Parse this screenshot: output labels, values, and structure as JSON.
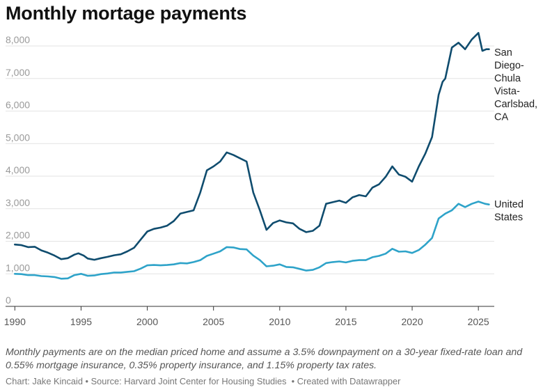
{
  "title": "Monthly mortage payments",
  "chart_data": {
    "type": "line",
    "title": "Monthly mortage payments",
    "xlabel": "",
    "ylabel": "",
    "xlim": [
      1989.3,
      2026.2
    ],
    "ylim": [
      0,
      8000
    ],
    "grid": true,
    "legend": "direct labels at line ends (right)",
    "x_ticks": [
      1990,
      1995,
      2000,
      2005,
      2010,
      2015,
      2020,
      2025
    ],
    "y_ticks": [
      0,
      1000,
      2000,
      3000,
      4000,
      5000,
      6000,
      7000,
      8000
    ],
    "y_tick_labels": [
      "0",
      "1,000",
      "2,000",
      "3,000",
      "4,000",
      "5,000",
      "6,000",
      "7,000",
      "8,000"
    ],
    "series": [
      {
        "name": "San Diego-Chula Vista-Carlsbad, CA",
        "label_lines": [
          "San",
          "Diego-",
          "Chula",
          "Vista-",
          "Carlsbad,",
          "CA"
        ],
        "color": "#0f4c6e",
        "points": [
          [
            1990.0,
            1900
          ],
          [
            1990.5,
            1880
          ],
          [
            1991.0,
            1820
          ],
          [
            1991.5,
            1830
          ],
          [
            1992.0,
            1720
          ],
          [
            1992.5,
            1650
          ],
          [
            1993.0,
            1560
          ],
          [
            1993.5,
            1450
          ],
          [
            1994.0,
            1480
          ],
          [
            1994.5,
            1590
          ],
          [
            1994.8,
            1630
          ],
          [
            1995.2,
            1560
          ],
          [
            1995.5,
            1470
          ],
          [
            1996.0,
            1430
          ],
          [
            1996.5,
            1480
          ],
          [
            1997.0,
            1520
          ],
          [
            1997.5,
            1570
          ],
          [
            1998.0,
            1600
          ],
          [
            1998.5,
            1690
          ],
          [
            1999.0,
            1800
          ],
          [
            1999.5,
            2050
          ],
          [
            2000.0,
            2300
          ],
          [
            2000.5,
            2380
          ],
          [
            2001.0,
            2420
          ],
          [
            2001.5,
            2480
          ],
          [
            2002.0,
            2620
          ],
          [
            2002.5,
            2850
          ],
          [
            2003.0,
            2900
          ],
          [
            2003.5,
            2950
          ],
          [
            2004.0,
            3500
          ],
          [
            2004.5,
            4180
          ],
          [
            2005.0,
            4300
          ],
          [
            2005.5,
            4450
          ],
          [
            2006.0,
            4730
          ],
          [
            2006.5,
            4650
          ],
          [
            2007.0,
            4550
          ],
          [
            2007.5,
            4450
          ],
          [
            2008.0,
            3500
          ],
          [
            2008.5,
            2950
          ],
          [
            2009.0,
            2350
          ],
          [
            2009.5,
            2560
          ],
          [
            2010.0,
            2640
          ],
          [
            2010.5,
            2580
          ],
          [
            2011.0,
            2550
          ],
          [
            2011.5,
            2380
          ],
          [
            2012.0,
            2280
          ],
          [
            2012.5,
            2320
          ],
          [
            2013.0,
            2480
          ],
          [
            2013.5,
            3150
          ],
          [
            2014.0,
            3200
          ],
          [
            2014.5,
            3250
          ],
          [
            2015.0,
            3180
          ],
          [
            2015.5,
            3350
          ],
          [
            2016.0,
            3420
          ],
          [
            2016.5,
            3380
          ],
          [
            2017.0,
            3650
          ],
          [
            2017.5,
            3750
          ],
          [
            2018.0,
            3980
          ],
          [
            2018.5,
            4300
          ],
          [
            2019.0,
            4050
          ],
          [
            2019.5,
            3980
          ],
          [
            2020.0,
            3830
          ],
          [
            2020.5,
            4300
          ],
          [
            2021.0,
            4700
          ],
          [
            2021.5,
            5200
          ],
          [
            2022.0,
            6500
          ],
          [
            2022.3,
            6900
          ],
          [
            2022.5,
            7000
          ],
          [
            2023.0,
            7950
          ],
          [
            2023.5,
            8100
          ],
          [
            2024.0,
            7900
          ],
          [
            2024.5,
            8200
          ],
          [
            2025.0,
            8400
          ],
          [
            2025.3,
            7850
          ],
          [
            2025.6,
            7900
          ],
          [
            2025.8,
            7900
          ]
        ]
      },
      {
        "name": "United States",
        "label_lines": [
          "United",
          "States"
        ],
        "color": "#2ea3c9",
        "points": [
          [
            1990.0,
            1000
          ],
          [
            1990.5,
            990
          ],
          [
            1991.0,
            960
          ],
          [
            1991.5,
            960
          ],
          [
            1992.0,
            930
          ],
          [
            1992.5,
            920
          ],
          [
            1993.0,
            900
          ],
          [
            1993.5,
            850
          ],
          [
            1994.0,
            860
          ],
          [
            1994.5,
            960
          ],
          [
            1995.0,
            1000
          ],
          [
            1995.5,
            940
          ],
          [
            1996.0,
            950
          ],
          [
            1996.5,
            990
          ],
          [
            1997.0,
            1010
          ],
          [
            1997.5,
            1040
          ],
          [
            1998.0,
            1040
          ],
          [
            1998.5,
            1060
          ],
          [
            1999.0,
            1080
          ],
          [
            1999.5,
            1160
          ],
          [
            2000.0,
            1260
          ],
          [
            2000.5,
            1270
          ],
          [
            2001.0,
            1260
          ],
          [
            2001.5,
            1270
          ],
          [
            2002.0,
            1290
          ],
          [
            2002.5,
            1330
          ],
          [
            2003.0,
            1320
          ],
          [
            2003.5,
            1360
          ],
          [
            2004.0,
            1420
          ],
          [
            2004.5,
            1550
          ],
          [
            2005.0,
            1620
          ],
          [
            2005.5,
            1690
          ],
          [
            2006.0,
            1820
          ],
          [
            2006.5,
            1810
          ],
          [
            2007.0,
            1760
          ],
          [
            2007.5,
            1750
          ],
          [
            2008.0,
            1560
          ],
          [
            2008.5,
            1420
          ],
          [
            2009.0,
            1230
          ],
          [
            2009.5,
            1250
          ],
          [
            2010.0,
            1290
          ],
          [
            2010.5,
            1210
          ],
          [
            2011.0,
            1200
          ],
          [
            2011.5,
            1150
          ],
          [
            2012.0,
            1100
          ],
          [
            2012.5,
            1120
          ],
          [
            2013.0,
            1200
          ],
          [
            2013.5,
            1330
          ],
          [
            2014.0,
            1360
          ],
          [
            2014.5,
            1380
          ],
          [
            2015.0,
            1350
          ],
          [
            2015.5,
            1400
          ],
          [
            2016.0,
            1420
          ],
          [
            2016.5,
            1420
          ],
          [
            2017.0,
            1510
          ],
          [
            2017.5,
            1550
          ],
          [
            2018.0,
            1620
          ],
          [
            2018.5,
            1770
          ],
          [
            2019.0,
            1680
          ],
          [
            2019.5,
            1690
          ],
          [
            2020.0,
            1640
          ],
          [
            2020.5,
            1730
          ],
          [
            2021.0,
            1900
          ],
          [
            2021.5,
            2100
          ],
          [
            2022.0,
            2700
          ],
          [
            2022.5,
            2850
          ],
          [
            2023.0,
            2950
          ],
          [
            2023.5,
            3150
          ],
          [
            2024.0,
            3050
          ],
          [
            2024.5,
            3150
          ],
          [
            2025.0,
            3220
          ],
          [
            2025.5,
            3150
          ],
          [
            2025.8,
            3130
          ]
        ]
      }
    ]
  },
  "note": "Monthly payments are on the median priced home and assume a 3.5% downpayment on a 30-year fixed-rate loan and 0.55% mortgage insurance, 0.35% property insurance, and 1.15% property tax rates.",
  "footer": {
    "chart_credit": "Chart: Jake Kincaid",
    "source": "Source: Harvard Joint Center for Housing Studies",
    "created_with": "Created with Datawrapper",
    "separator": "•"
  }
}
